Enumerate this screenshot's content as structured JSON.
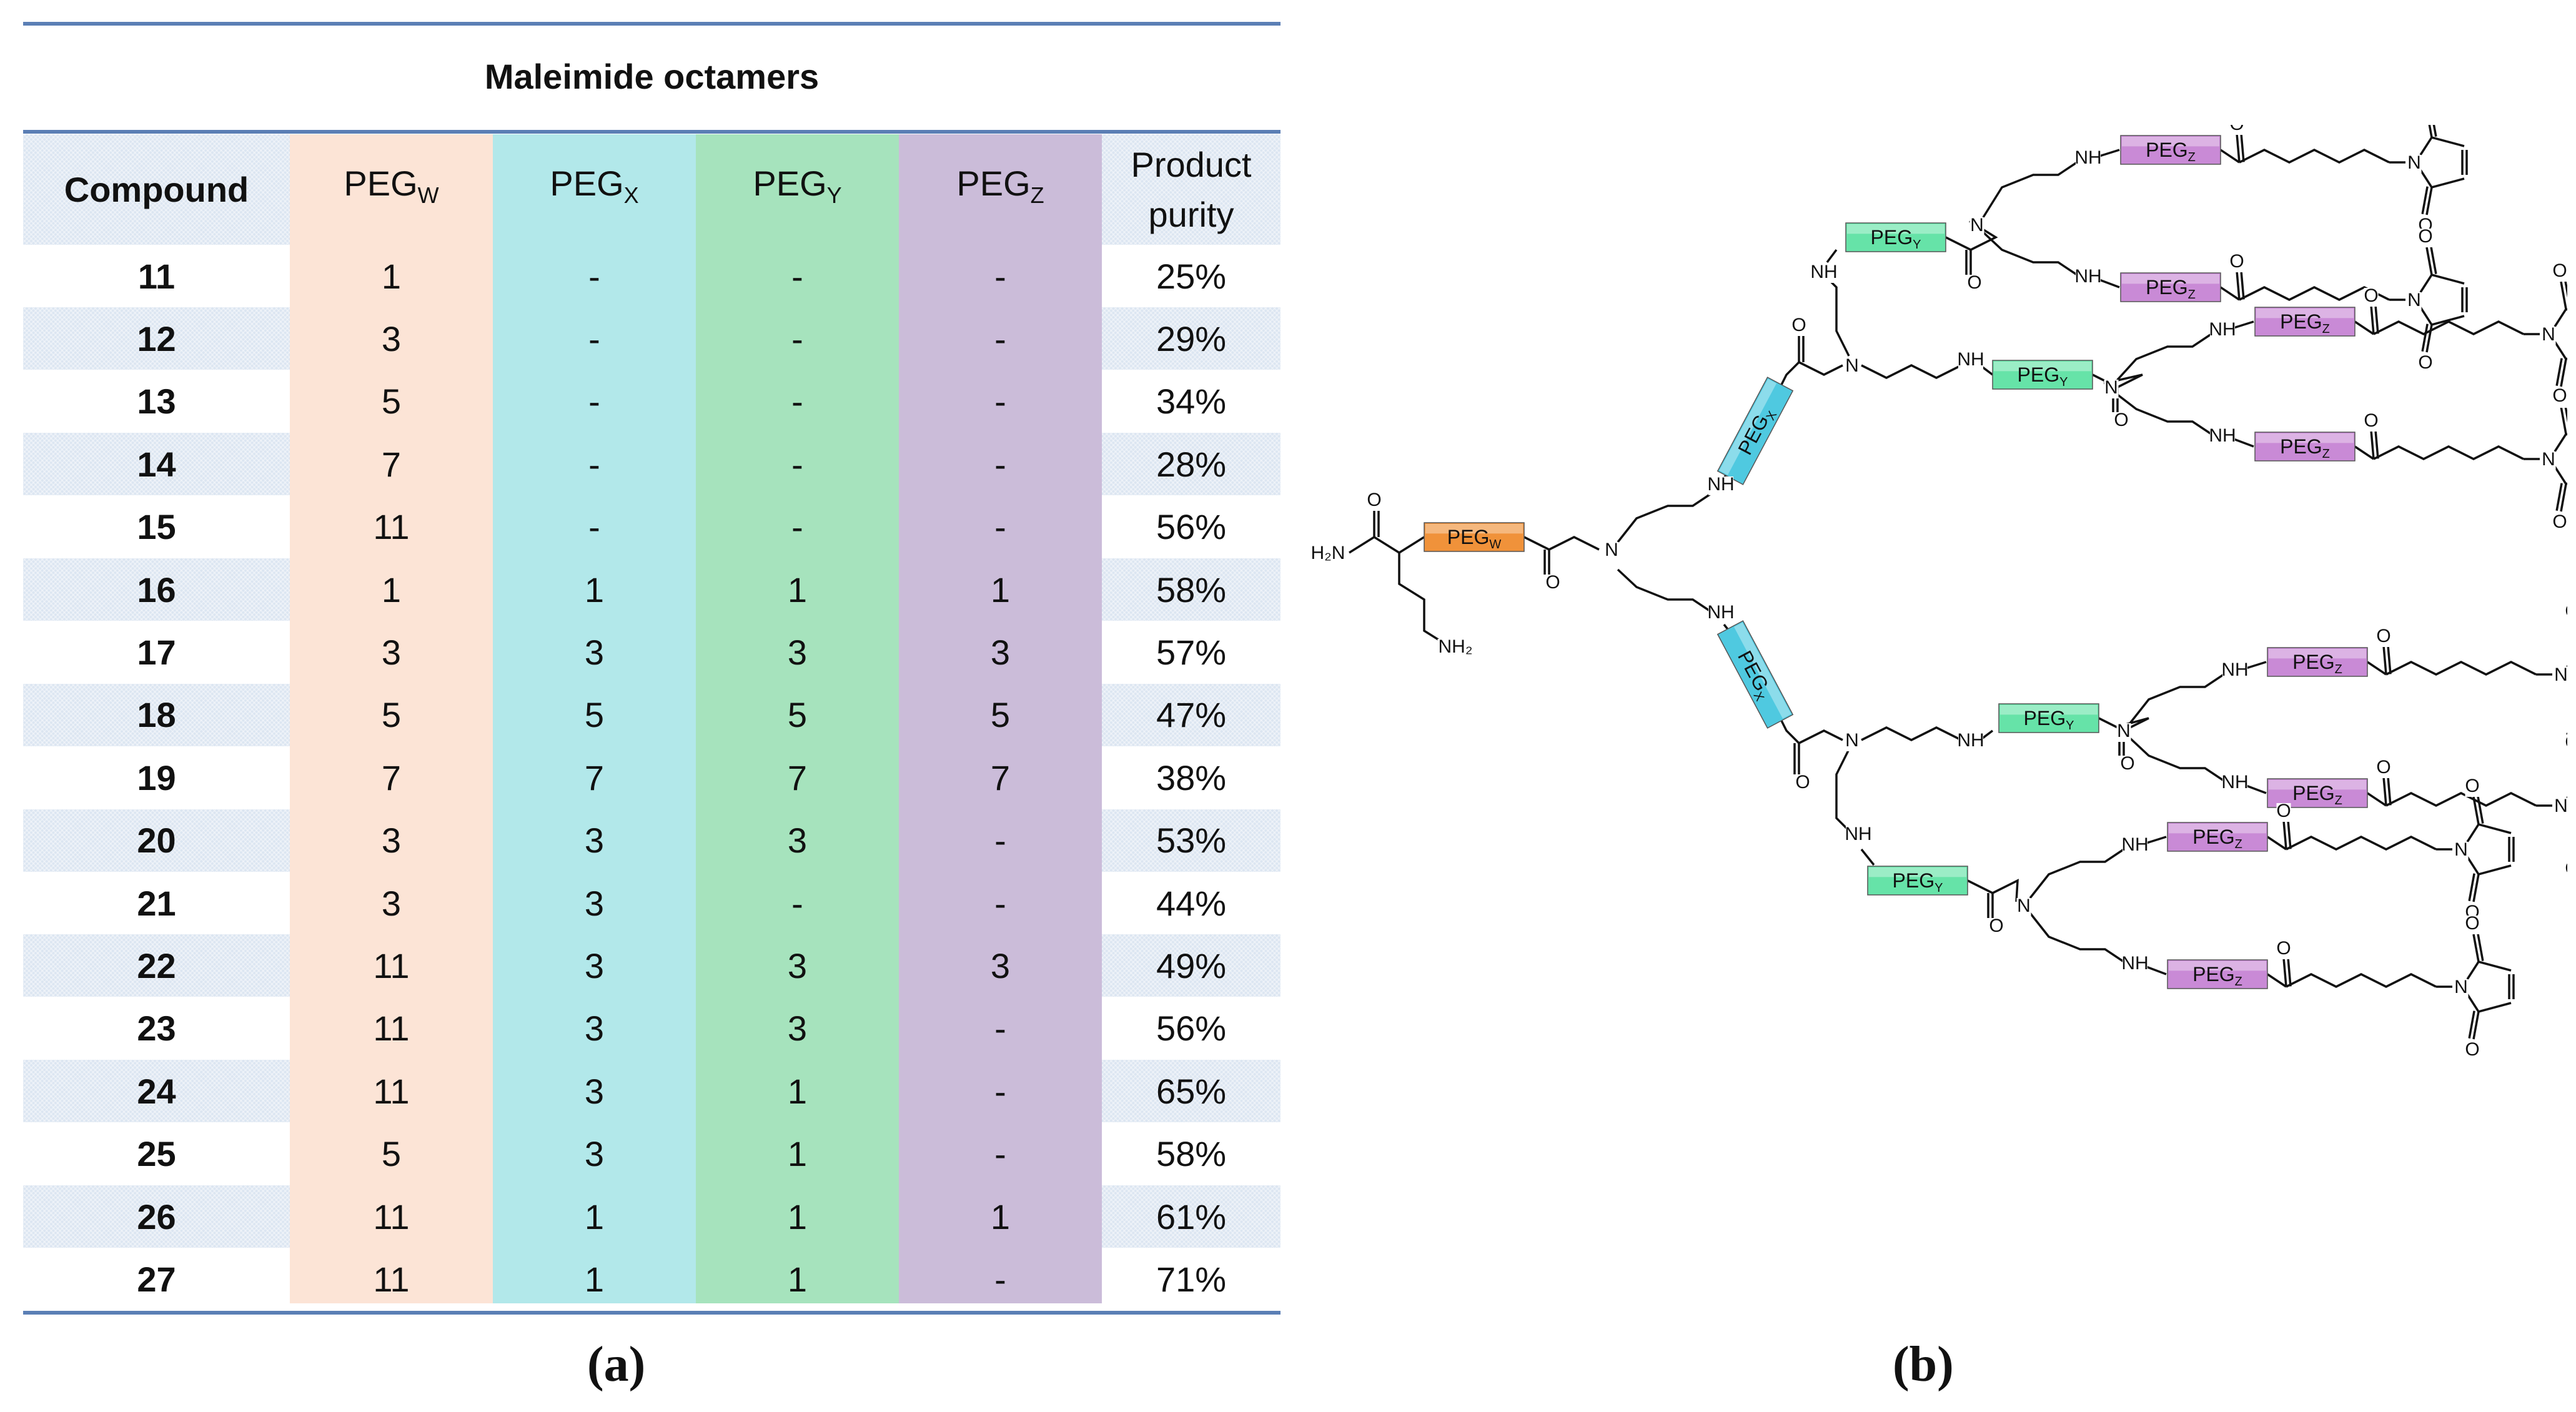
{
  "table": {
    "title": "Maleimide octamers",
    "headers": {
      "compound": "Compound",
      "peg_w": {
        "base": "PEG",
        "sub": "W"
      },
      "peg_x": {
        "base": "PEG",
        "sub": "X"
      },
      "peg_y": {
        "base": "PEG",
        "sub": "Y"
      },
      "peg_z": {
        "base": "PEG",
        "sub": "Z"
      },
      "purity_line1": "Product",
      "purity_line2": "purity"
    },
    "rows": [
      [
        "11",
        "1",
        "-",
        "-",
        "-",
        "25%"
      ],
      [
        "12",
        "3",
        "-",
        "-",
        "-",
        "29%"
      ],
      [
        "13",
        "5",
        "-",
        "-",
        "-",
        "34%"
      ],
      [
        "14",
        "7",
        "-",
        "-",
        "-",
        "28%"
      ],
      [
        "15",
        "11",
        "-",
        "-",
        "-",
        "56%"
      ],
      [
        "16",
        "1",
        "1",
        "1",
        "1",
        "58%"
      ],
      [
        "17",
        "3",
        "3",
        "3",
        "3",
        "57%"
      ],
      [
        "18",
        "5",
        "5",
        "5",
        "5",
        "47%"
      ],
      [
        "19",
        "7",
        "7",
        "7",
        "7",
        "38%"
      ],
      [
        "20",
        "3",
        "3",
        "3",
        "-",
        "53%"
      ],
      [
        "21",
        "3",
        "3",
        "-",
        "-",
        "44%"
      ],
      [
        "22",
        "11",
        "3",
        "3",
        "3",
        "49%"
      ],
      [
        "23",
        "11",
        "3",
        "3",
        "-",
        "56%"
      ],
      [
        "24",
        "11",
        "3",
        "1",
        "-",
        "65%"
      ],
      [
        "25",
        "5",
        "3",
        "1",
        "-",
        "58%"
      ],
      [
        "26",
        "11",
        "1",
        "1",
        "1",
        "61%"
      ],
      [
        "27",
        "11",
        "1",
        "1",
        "-",
        "71%"
      ]
    ],
    "caption": "(a)"
  },
  "scheme": {
    "caption": "(b)",
    "peg_label": "PEG",
    "peg_subs": {
      "w": "W",
      "x": "X",
      "y": "Y",
      "z": "Z"
    },
    "atoms": {
      "n": "N",
      "nh": "NH",
      "o": "O",
      "h2n": "H₂N",
      "nh2": "NH₂"
    }
  },
  "colors": {
    "rule": "#5b7fb5",
    "header_stripe": "#dbe5f1",
    "peg_w_col": "#fce4d6",
    "peg_x_col": "#b2e8ea",
    "peg_y_col": "#a6e3bd",
    "peg_z_col": "#cbbcd9",
    "peg_w_box": "#f0923a",
    "peg_x_box": "#4fc9e0",
    "peg_y_box": "#66e3a8",
    "peg_z_box": "#c98ad6"
  }
}
